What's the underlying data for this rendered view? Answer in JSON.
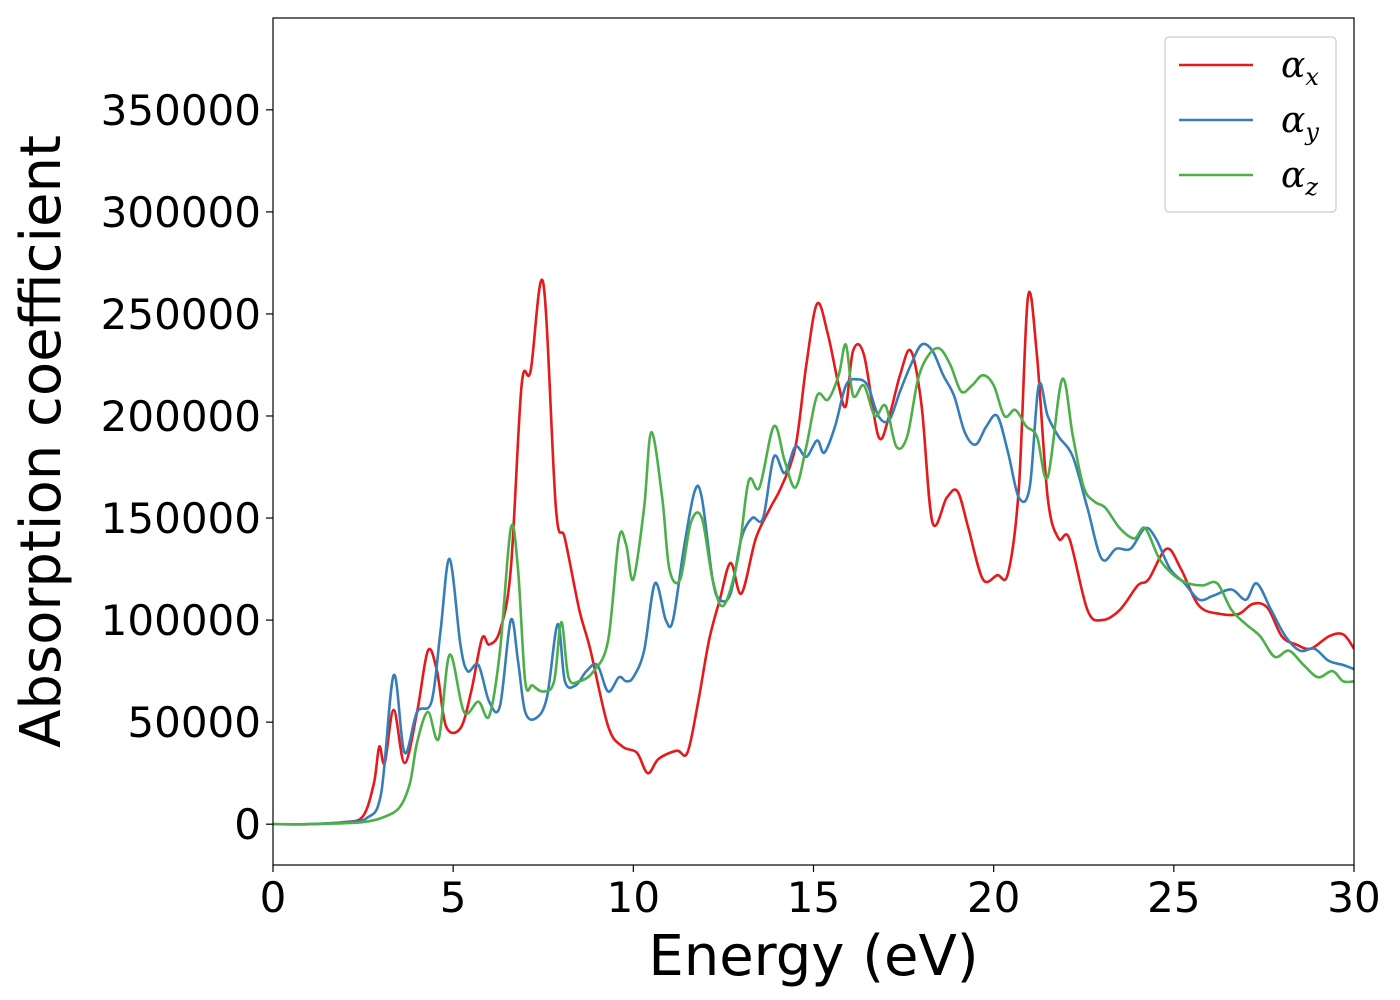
{
  "chart_data": {
    "type": "line",
    "title": "",
    "xlabel": "Energy (eV)",
    "ylabel": "Absorption coefficient",
    "xlim": [
      0,
      30
    ],
    "ylim": [
      -20000,
      395000
    ],
    "xticks": [
      0,
      5,
      10,
      15,
      20,
      25,
      30
    ],
    "yticks": [
      0,
      50000,
      100000,
      150000,
      200000,
      250000,
      300000,
      350000
    ],
    "grid": false,
    "legend": "top-right",
    "series": [
      {
        "name": "αx",
        "label_base": "α",
        "label_sub": "x",
        "color": "#e41a1c",
        "x": [
          0,
          1,
          2,
          2.5,
          2.8,
          2.95,
          3.1,
          3.35,
          3.65,
          4.0,
          4.3,
          4.55,
          4.8,
          5.2,
          5.5,
          5.8,
          6.0,
          6.3,
          6.6,
          6.9,
          7.15,
          7.5,
          7.85,
          8.1,
          8.5,
          8.8,
          9.3,
          9.7,
          10.1,
          10.4,
          10.7,
          11.2,
          11.5,
          11.8,
          12.1,
          12.4,
          12.7,
          13.0,
          13.4,
          13.8,
          14.1,
          14.5,
          14.8,
          15.1,
          15.4,
          15.7,
          15.9,
          16.1,
          16.4,
          16.8,
          17.1,
          17.4,
          17.7,
          18.0,
          18.3,
          18.7,
          19.0,
          19.3,
          19.7,
          20.1,
          20.4,
          20.7,
          20.95,
          21.2,
          21.5,
          21.8,
          22.1,
          22.6,
          23.0,
          23.5,
          24.0,
          24.3,
          24.8,
          25.2,
          25.7,
          26.3,
          26.8,
          27.2,
          27.6,
          28.0,
          28.4,
          28.8,
          29.3,
          29.7,
          30
        ],
        "y": [
          0,
          0,
          1000,
          4000,
          20000,
          38000,
          30000,
          56000,
          30000,
          55000,
          85000,
          75000,
          48000,
          47000,
          65000,
          91000,
          88000,
          95000,
          125000,
          215000,
          222000,
          265000,
          155000,
          140000,
          105000,
          86000,
          48000,
          38000,
          35000,
          25000,
          32000,
          36000,
          35000,
          60000,
          90000,
          110000,
          128000,
          113000,
          140000,
          155000,
          165000,
          185000,
          225000,
          255000,
          240000,
          215000,
          205000,
          232000,
          230000,
          190000,
          200000,
          220000,
          232000,
          205000,
          148000,
          160000,
          163000,
          145000,
          120000,
          122000,
          123000,
          165000,
          258000,
          230000,
          160000,
          140000,
          140000,
          105000,
          100000,
          105000,
          117000,
          120000,
          135000,
          125000,
          107000,
          103000,
          103000,
          108000,
          106000,
          92000,
          88000,
          86000,
          92000,
          93000,
          86000
        ]
      },
      {
        "name": "αy",
        "label_base": "α",
        "label_sub": "y",
        "color": "#377eb8",
        "x": [
          0,
          1,
          2,
          2.6,
          3.0,
          3.35,
          3.65,
          4.0,
          4.4,
          4.65,
          4.9,
          5.2,
          5.4,
          5.7,
          6.0,
          6.3,
          6.6,
          6.8,
          7.0,
          7.3,
          7.6,
          7.9,
          8.1,
          8.4,
          8.7,
          9.0,
          9.3,
          9.6,
          9.8,
          10.0,
          10.3,
          10.6,
          10.9,
          11.1,
          11.4,
          11.7,
          11.9,
          12.2,
          12.4,
          12.7,
          13.0,
          13.3,
          13.6,
          13.9,
          14.2,
          14.5,
          14.8,
          15.1,
          15.3,
          15.6,
          15.9,
          16.2,
          16.5,
          16.8,
          17.1,
          17.4,
          17.7,
          18.0,
          18.3,
          18.6,
          18.9,
          19.2,
          19.5,
          19.8,
          20.1,
          20.4,
          20.7,
          21.0,
          21.25,
          21.5,
          21.8,
          22.2,
          22.6,
          23.0,
          23.4,
          23.8,
          24.2,
          24.5,
          24.9,
          25.3,
          25.7,
          26.1,
          26.6,
          27.0,
          27.3,
          27.7,
          28.1,
          28.5,
          28.9,
          29.3,
          29.7,
          30
        ],
        "y": [
          0,
          0,
          1000,
          3000,
          15000,
          73000,
          35000,
          55000,
          60000,
          95000,
          130000,
          88000,
          75000,
          78000,
          60000,
          58000,
          100000,
          80000,
          55000,
          52000,
          62000,
          98000,
          70000,
          68000,
          75000,
          78000,
          65000,
          72000,
          70000,
          72000,
          85000,
          118000,
          100000,
          100000,
          135000,
          163000,
          160000,
          120000,
          110000,
          113000,
          140000,
          150000,
          150000,
          180000,
          172000,
          185000,
          180000,
          188000,
          182000,
          195000,
          215000,
          218000,
          215000,
          200000,
          198000,
          212000,
          225000,
          235000,
          232000,
          220000,
          210000,
          192000,
          186000,
          195000,
          200000,
          182000,
          160000,
          165000,
          215000,
          200000,
          190000,
          180000,
          155000,
          130000,
          135000,
          135000,
          145000,
          140000,
          125000,
          118000,
          110000,
          112000,
          115000,
          110000,
          118000,
          105000,
          92000,
          85000,
          86000,
          80000,
          78000,
          76000
        ]
      },
      {
        "name": "αz",
        "label_base": "α",
        "label_sub": "z",
        "color": "#4daf4a",
        "x": [
          0,
          1,
          2,
          2.5,
          3.0,
          3.5,
          3.8,
          4.0,
          4.3,
          4.6,
          4.9,
          5.3,
          5.7,
          6.0,
          6.3,
          6.6,
          6.8,
          7.0,
          7.2,
          7.5,
          7.8,
          8.0,
          8.2,
          8.5,
          8.9,
          9.3,
          9.6,
          9.8,
          10.0,
          10.3,
          10.5,
          10.8,
          11.0,
          11.3,
          11.6,
          11.9,
          12.2,
          12.5,
          12.9,
          13.2,
          13.5,
          13.9,
          14.2,
          14.5,
          14.8,
          15.1,
          15.4,
          15.7,
          15.9,
          16.1,
          16.4,
          16.7,
          17.0,
          17.3,
          17.6,
          17.9,
          18.2,
          18.5,
          18.8,
          19.1,
          19.4,
          19.7,
          20.0,
          20.3,
          20.6,
          20.9,
          21.2,
          21.5,
          21.9,
          22.2,
          22.5,
          22.8,
          23.1,
          23.5,
          23.9,
          24.2,
          24.6,
          25.0,
          25.4,
          25.8,
          26.2,
          26.6,
          27.0,
          27.4,
          27.8,
          28.2,
          28.6,
          29.0,
          29.4,
          29.7,
          30
        ],
        "y": [
          0,
          0,
          500,
          1000,
          3000,
          8000,
          20000,
          40000,
          55000,
          42000,
          83000,
          55000,
          60000,
          53000,
          85000,
          145000,
          125000,
          70000,
          68000,
          65000,
          70000,
          99000,
          72000,
          70000,
          75000,
          90000,
          140000,
          137000,
          120000,
          155000,
          192000,
          160000,
          125000,
          120000,
          148000,
          150000,
          120000,
          107000,
          130000,
          168000,
          165000,
          195000,
          178000,
          165000,
          185000,
          210000,
          208000,
          220000,
          235000,
          210000,
          215000,
          200000,
          205000,
          185000,
          190000,
          218000,
          230000,
          233000,
          225000,
          212000,
          215000,
          220000,
          215000,
          200000,
          203000,
          195000,
          190000,
          170000,
          218000,
          190000,
          165000,
          158000,
          155000,
          145000,
          140000,
          145000,
          130000,
          122000,
          118000,
          117000,
          118000,
          105000,
          98000,
          92000,
          82000,
          85000,
          78000,
          72000,
          75000,
          70000,
          70000
        ]
      }
    ]
  }
}
